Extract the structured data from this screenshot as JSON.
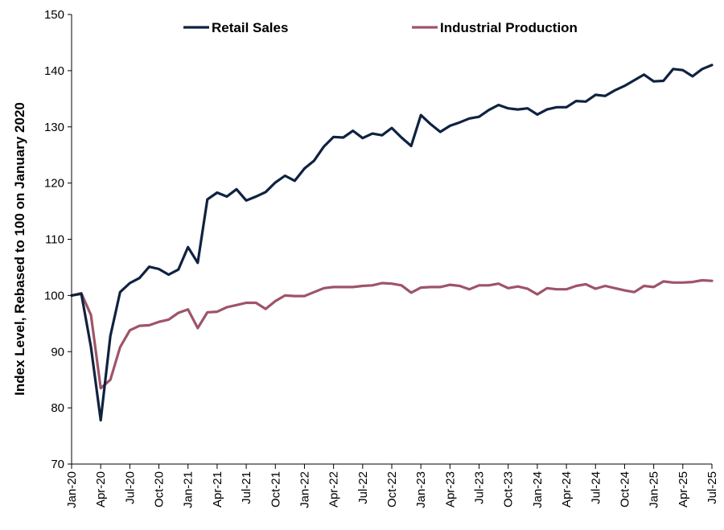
{
  "chart_data": {
    "type": "line",
    "ylabel": "Index Level, Rebased to 100 on January 2020",
    "xlabel": "",
    "ylim": [
      70,
      150
    ],
    "y_ticks": [
      70,
      80,
      90,
      100,
      110,
      120,
      130,
      140,
      150
    ],
    "x_tick_labels": [
      "Jan-20",
      "Apr-20",
      "Jul-20",
      "Oct-20",
      "Jan-21",
      "Apr-21",
      "Jul-21",
      "Oct-21",
      "Jan-22",
      "Apr-22",
      "Jul-22",
      "Oct-22",
      "Jan-23",
      "Apr-23",
      "Jul-23",
      "Oct-23",
      "Jan-24",
      "Apr-24",
      "Jul-24",
      "Oct-24",
      "Jan-25",
      "Apr-25",
      "Jul-25"
    ],
    "x_start": "2020-01",
    "x_end": "2025-07",
    "legend_position": "top",
    "grid": false,
    "series": [
      {
        "name": "Retail Sales",
        "color": "#0f2240",
        "values": [
          100,
          100.3,
          90.8,
          77.8,
          92.8,
          100.6,
          102.2,
          103.1,
          105.1,
          104.7,
          103.7,
          104.6,
          108.6,
          105.8,
          117.1,
          118.3,
          117.6,
          118.9,
          116.9,
          117.6,
          118.4,
          120.1,
          121.3,
          120.4,
          122.6,
          124,
          126.5,
          128.2,
          128.1,
          129.3,
          128,
          128.8,
          128.5,
          129.8,
          128.1,
          126.6,
          132.1,
          130.5,
          129.1,
          130.2,
          130.8,
          131.5,
          131.8,
          133,
          133.9,
          133.3,
          133.1,
          133.3,
          132.2,
          133.1,
          133.5,
          133.5,
          134.6,
          134.5,
          135.7,
          135.5,
          136.5,
          137.3,
          138.3,
          139.3,
          138.1,
          138.2,
          140.3,
          140.1,
          139,
          140.3,
          141
        ]
      },
      {
        "name": "Industrial Production",
        "color": "#9e5468",
        "values": [
          100,
          100.4,
          96.5,
          83.5,
          85,
          90.8,
          93.8,
          94.6,
          94.7,
          95.3,
          95.7,
          96.9,
          97.5,
          94.2,
          97,
          97.1,
          97.9,
          98.3,
          98.7,
          98.7,
          97.6,
          99,
          100,
          99.9,
          99.9,
          100.6,
          101.3,
          101.5,
          101.5,
          101.5,
          101.7,
          101.8,
          102.2,
          102.1,
          101.8,
          100.5,
          101.4,
          101.5,
          101.5,
          101.9,
          101.7,
          101.1,
          101.8,
          101.8,
          102.1,
          101.3,
          101.6,
          101.2,
          100.2,
          101.3,
          101.1,
          101.1,
          101.7,
          102,
          101.2,
          101.7,
          101.3,
          100.9,
          100.6,
          101.7,
          101.5,
          102.5,
          102.3,
          102.3,
          102.4,
          102.7,
          102.6
        ]
      }
    ]
  }
}
